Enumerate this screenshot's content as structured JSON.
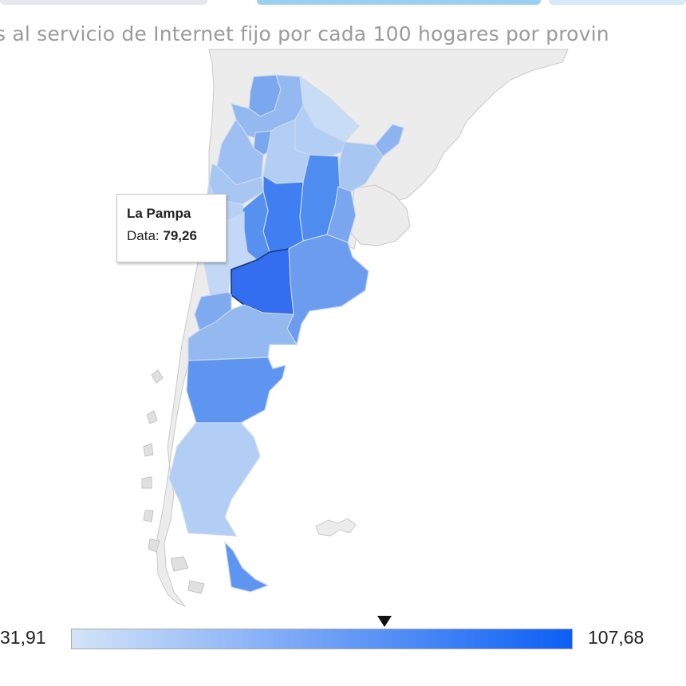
{
  "header": {
    "subtitle": "s al servicio de Internet fijo por cada 100 hogares por provin"
  },
  "tooltip": {
    "province": "La Pampa",
    "label": "Data:",
    "value": "79,26"
  },
  "legend": {
    "min_label": "31,91",
    "max_label": "107,68",
    "min": 31.91,
    "max": 107.68,
    "marker_value": 79.26,
    "color_low": "#d4e4f8",
    "color_high": "#0b5ff5"
  },
  "colors": {
    "land": "#ececec",
    "border": "#c9c9c9",
    "province_border": "#c6d4e8",
    "title_accent": "#2e9ee8"
  }
}
